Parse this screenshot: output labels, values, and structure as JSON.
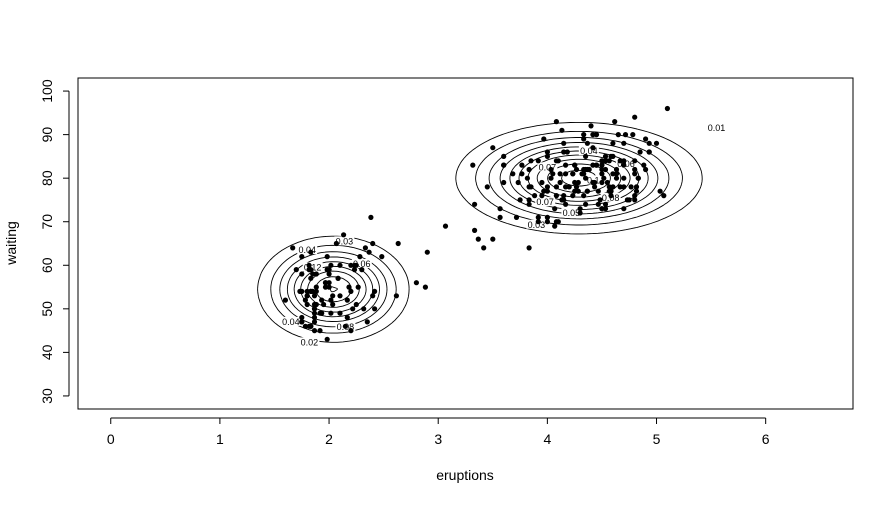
{
  "chart_data": {
    "type": "scatter",
    "title": "",
    "xlabel": "eruptions",
    "ylabel": "waiting",
    "xlim": [
      -0.3,
      6.8
    ],
    "ylim": [
      27,
      103
    ],
    "x_ticks": [
      0,
      1,
      2,
      3,
      4,
      5,
      6
    ],
    "y_ticks": [
      30,
      40,
      50,
      60,
      70,
      80,
      90,
      100
    ],
    "grid": false,
    "legend": "none",
    "overlay": "2D kernel density contours",
    "contour_labels": [
      {
        "label": "0.01",
        "x": 5.55,
        "y": 91.5
      },
      {
        "label": "0.04",
        "x": 4.38,
        "y": 86.2
      },
      {
        "label": "0.06",
        "x": 4.72,
        "y": 83.2
      },
      {
        "label": "0.07",
        "x": 4.0,
        "y": 82.5
      },
      {
        "label": "0.1",
        "x": 4.42,
        "y": 79.5
      },
      {
        "label": "0.08",
        "x": 4.58,
        "y": 75.5
      },
      {
        "label": "0.05",
        "x": 4.22,
        "y": 72.0
      },
      {
        "label": "0.03",
        "x": 3.9,
        "y": 69.3
      },
      {
        "label": "0.07",
        "x": 3.98,
        "y": 74.5
      },
      {
        "label": "0.03",
        "x": 2.14,
        "y": 65.5
      },
      {
        "label": "0.04",
        "x": 1.8,
        "y": 63.5
      },
      {
        "label": "0.06",
        "x": 2.3,
        "y": 60.3
      },
      {
        "label": "0.02",
        "x": 1.82,
        "y": 42.3
      },
      {
        "label": "0.04",
        "x": 1.65,
        "y": 47.0
      },
      {
        "label": "0.08",
        "x": 2.15,
        "y": 45.8
      },
      {
        "label": "0.12",
        "x": 1.85,
        "y": 59.5
      }
    ],
    "series": [
      {
        "points": [
          [
            3.6,
            79
          ],
          [
            1.8,
            54
          ],
          [
            3.333,
            74
          ],
          [
            2.283,
            62
          ],
          [
            4.533,
            85
          ],
          [
            2.883,
            55
          ],
          [
            4.7,
            88
          ],
          [
            3.6,
            85
          ],
          [
            1.95,
            51
          ],
          [
            4.35,
            85
          ],
          [
            1.833,
            54
          ],
          [
            3.917,
            84
          ],
          [
            4.2,
            78
          ],
          [
            1.75,
            47
          ],
          [
            4.7,
            83
          ],
          [
            2.167,
            52
          ],
          [
            1.75,
            62
          ],
          [
            4.8,
            84
          ],
          [
            1.6,
            52
          ],
          [
            4.25,
            79
          ],
          [
            1.8,
            51
          ],
          [
            1.75,
            47
          ],
          [
            3.45,
            78
          ],
          [
            3.067,
            69
          ],
          [
            4.533,
            74
          ],
          [
            3.6,
            83
          ],
          [
            1.967,
            55
          ],
          [
            4.083,
            76
          ],
          [
            3.85,
            78
          ],
          [
            4.433,
            79
          ],
          [
            4.3,
            73
          ],
          [
            4.467,
            77
          ],
          [
            3.367,
            66
          ],
          [
            4.033,
            80
          ],
          [
            3.833,
            74
          ],
          [
            2.017,
            52
          ],
          [
            1.867,
            48
          ],
          [
            4.833,
            80
          ],
          [
            1.833,
            59
          ],
          [
            4.783,
            90
          ],
          [
            4.35,
            80
          ],
          [
            1.883,
            58
          ],
          [
            4.567,
            84
          ],
          [
            1.75,
            58
          ],
          [
            4.533,
            73
          ],
          [
            3.317,
            83
          ],
          [
            3.833,
            64
          ],
          [
            2.1,
            53
          ],
          [
            4.633,
            82
          ],
          [
            2.0,
            59
          ],
          [
            4.8,
            75
          ],
          [
            4.716,
            90
          ],
          [
            1.833,
            54
          ],
          [
            4.833,
            80
          ],
          [
            1.733,
            54
          ],
          [
            4.883,
            83
          ],
          [
            3.717,
            71
          ],
          [
            1.667,
            64
          ],
          [
            4.567,
            77
          ],
          [
            4.317,
            81
          ],
          [
            2.233,
            59
          ],
          [
            4.5,
            84
          ],
          [
            1.75,
            48
          ],
          [
            4.8,
            82
          ],
          [
            1.817,
            60
          ],
          [
            4.4,
            92
          ],
          [
            4.167,
            78
          ],
          [
            4.7,
            78
          ],
          [
            2.067,
            65
          ],
          [
            4.7,
            73
          ],
          [
            4.033,
            82
          ],
          [
            1.967,
            56
          ],
          [
            4.5,
            79
          ],
          [
            4.0,
            71
          ],
          [
            1.983,
            62
          ],
          [
            5.067,
            76
          ],
          [
            2.017,
            60
          ],
          [
            4.567,
            78
          ],
          [
            3.883,
            76
          ],
          [
            3.6,
            83
          ],
          [
            4.133,
            75
          ],
          [
            4.333,
            82
          ],
          [
            4.1,
            70
          ],
          [
            2.633,
            65
          ],
          [
            4.067,
            73
          ],
          [
            4.933,
            88
          ],
          [
            3.95,
            76
          ],
          [
            4.517,
            80
          ],
          [
            2.167,
            48
          ],
          [
            4.0,
            86
          ],
          [
            2.2,
            60
          ],
          [
            4.333,
            90
          ],
          [
            1.867,
            50
          ],
          [
            4.817,
            78
          ],
          [
            1.833,
            63
          ],
          [
            4.3,
            72
          ],
          [
            4.667,
            84
          ],
          [
            3.75,
            75
          ],
          [
            1.867,
            51
          ],
          [
            4.9,
            82
          ],
          [
            2.483,
            62
          ],
          [
            4.367,
            88
          ],
          [
            2.1,
            49
          ],
          [
            4.5,
            83
          ],
          [
            4.05,
            81
          ],
          [
            1.867,
            47
          ],
          [
            4.7,
            84
          ],
          [
            1.783,
            52
          ],
          [
            4.85,
            86
          ],
          [
            3.683,
            81
          ],
          [
            4.733,
            75
          ],
          [
            2.3,
            59
          ],
          [
            4.9,
            89
          ],
          [
            4.417,
            79
          ],
          [
            1.7,
            59
          ],
          [
            4.633,
            81
          ],
          [
            2.317,
            50
          ],
          [
            4.6,
            85
          ],
          [
            1.817,
            59
          ],
          [
            4.417,
            87
          ],
          [
            2.617,
            53
          ],
          [
            4.067,
            69
          ],
          [
            4.25,
            77
          ],
          [
            1.967,
            56
          ],
          [
            4.6,
            88
          ],
          [
            3.767,
            81
          ],
          [
            1.917,
            45
          ],
          [
            4.5,
            82
          ],
          [
            2.267,
            55
          ],
          [
            4.65,
            90
          ],
          [
            1.867,
            45
          ],
          [
            4.167,
            83
          ],
          [
            2.8,
            56
          ],
          [
            4.333,
            89
          ],
          [
            1.833,
            46
          ],
          [
            4.383,
            82
          ],
          [
            1.883,
            51
          ],
          [
            4.933,
            86
          ],
          [
            2.033,
            53
          ],
          [
            3.733,
            79
          ],
          [
            4.233,
            81
          ],
          [
            2.233,
            60
          ],
          [
            4.533,
            82
          ],
          [
            4.817,
            77
          ],
          [
            4.333,
            76
          ],
          [
            1.983,
            59
          ],
          [
            4.633,
            80
          ],
          [
            2.017,
            49
          ],
          [
            5.1,
            96
          ],
          [
            1.8,
            53
          ],
          [
            5.033,
            77
          ],
          [
            4.0,
            77
          ],
          [
            2.4,
            65
          ],
          [
            4.6,
            81
          ],
          [
            3.567,
            71
          ],
          [
            4.0,
            70
          ],
          [
            4.5,
            81
          ],
          [
            4.083,
            93
          ],
          [
            1.8,
            53
          ],
          [
            3.967,
            89
          ],
          [
            2.2,
            45
          ],
          [
            4.15,
            86
          ],
          [
            2.0,
            58
          ],
          [
            3.833,
            78
          ],
          [
            3.5,
            66
          ],
          [
            4.583,
            76
          ],
          [
            2.367,
            63
          ],
          [
            5.0,
            88
          ],
          [
            1.933,
            52
          ],
          [
            4.617,
            93
          ],
          [
            1.917,
            49
          ],
          [
            2.083,
            57
          ],
          [
            4.583,
            77
          ],
          [
            3.333,
            68
          ],
          [
            4.167,
            81
          ],
          [
            4.333,
            81
          ],
          [
            4.5,
            73
          ],
          [
            2.417,
            50
          ],
          [
            4.0,
            85
          ],
          [
            4.167,
            74
          ],
          [
            1.883,
            55
          ],
          [
            4.583,
            77
          ],
          [
            4.25,
            83
          ],
          [
            3.767,
            83
          ],
          [
            2.033,
            51
          ],
          [
            4.433,
            78
          ],
          [
            4.083,
            84
          ],
          [
            1.833,
            46
          ],
          [
            4.417,
            83
          ],
          [
            2.183,
            55
          ],
          [
            4.8,
            81
          ],
          [
            1.833,
            57
          ],
          [
            4.8,
            76
          ],
          [
            4.1,
            84
          ],
          [
            3.966,
            77
          ],
          [
            4.233,
            81
          ],
          [
            3.5,
            87
          ],
          [
            4.366,
            77
          ],
          [
            2.25,
            51
          ],
          [
            4.667,
            78
          ],
          [
            2.1,
            60
          ],
          [
            4.35,
            82
          ],
          [
            4.133,
            91
          ],
          [
            1.867,
            53
          ],
          [
            4.6,
            78
          ],
          [
            1.783,
            46
          ],
          [
            4.367,
            77
          ],
          [
            3.85,
            84
          ],
          [
            1.933,
            49
          ],
          [
            4.5,
            83
          ],
          [
            2.383,
            71
          ],
          [
            4.7,
            80
          ],
          [
            1.867,
            49
          ],
          [
            3.833,
            75
          ],
          [
            3.417,
            64
          ],
          [
            4.233,
            76
          ],
          [
            2.4,
            53
          ],
          [
            4.8,
            94
          ],
          [
            2.0,
            55
          ],
          [
            4.15,
            76
          ],
          [
            1.867,
            50
          ],
          [
            4.267,
            82
          ],
          [
            1.75,
            54
          ],
          [
            4.483,
            75
          ],
          [
            4.0,
            78
          ],
          [
            4.117,
            79
          ],
          [
            4.083,
            78
          ],
          [
            4.267,
            78
          ],
          [
            3.917,
            70
          ],
          [
            4.55,
            79
          ],
          [
            4.083,
            70
          ],
          [
            2.417,
            54
          ],
          [
            4.183,
            86
          ],
          [
            2.217,
            50
          ],
          [
            4.45,
            90
          ],
          [
            1.883,
            54
          ],
          [
            1.85,
            54
          ],
          [
            4.283,
            77
          ],
          [
            3.95,
            79
          ],
          [
            2.333,
            64
          ],
          [
            4.15,
            75
          ],
          [
            2.35,
            47
          ],
          [
            4.933,
            86
          ],
          [
            2.9,
            63
          ],
          [
            4.583,
            85
          ],
          [
            3.833,
            82
          ],
          [
            2.083,
            57
          ],
          [
            4.367,
            82
          ],
          [
            2.133,
            67
          ],
          [
            4.35,
            74
          ],
          [
            2.2,
            54
          ],
          [
            4.45,
            83
          ],
          [
            3.567,
            73
          ],
          [
            4.5,
            73
          ],
          [
            4.15,
            88
          ],
          [
            3.817,
            80
          ],
          [
            3.917,
            71
          ],
          [
            4.45,
            83
          ],
          [
            2.0,
            56
          ],
          [
            4.283,
            79
          ],
          [
            4.767,
            78
          ],
          [
            4.533,
            84
          ],
          [
            1.85,
            58
          ],
          [
            4.25,
            83
          ],
          [
            1.983,
            43
          ],
          [
            2.25,
            60
          ],
          [
            4.75,
            75
          ],
          [
            4.117,
            81
          ],
          [
            2.15,
            46
          ],
          [
            4.417,
            90
          ],
          [
            1.817,
            46
          ],
          [
            4.467,
            74
          ]
        ]
      }
    ]
  }
}
